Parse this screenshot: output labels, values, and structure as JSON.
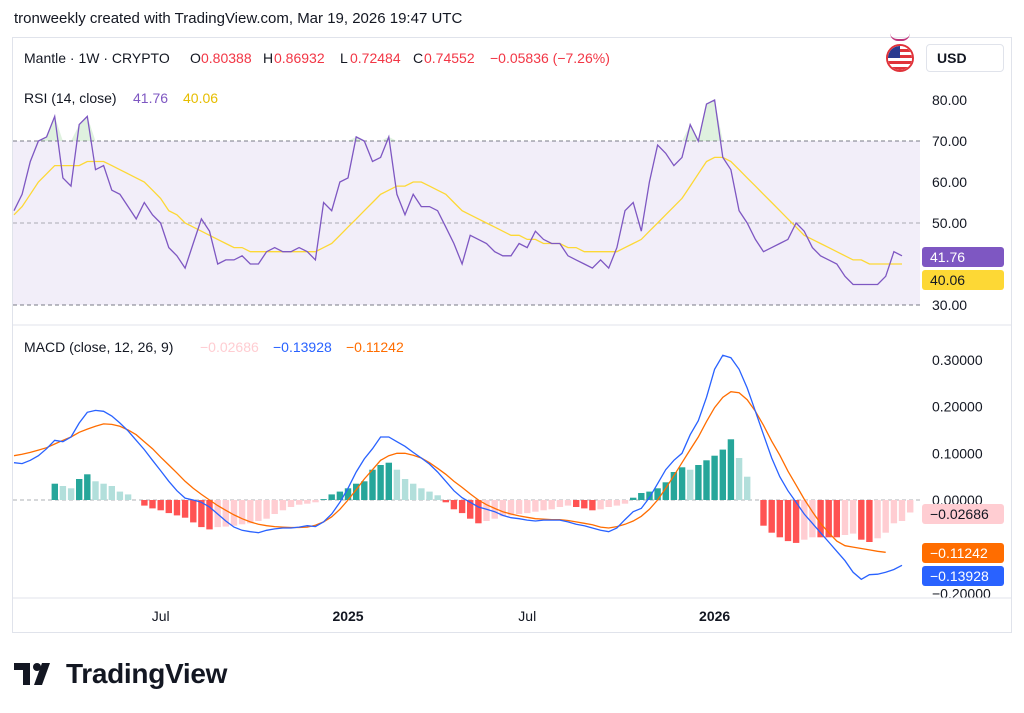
{
  "caption": "tronweekly created with TradingView.com, Mar 19, 2026 19:47 UTC",
  "price_currency": "USD",
  "legend": {
    "symbol": "Mantle · 1W · CRYPTO",
    "o_label": "O",
    "o_value": "0.80388",
    "h_label": "H",
    "h_value": "0.86932",
    "l_label": "L",
    "l_value": "0.72484",
    "c_label": "C",
    "c_value": "0.74552",
    "change": "−0.05836 (−7.26%)"
  },
  "rsi_legend": {
    "title": "RSI (14, close)",
    "rsi": "41.76",
    "ma": "40.06"
  },
  "macd_legend": {
    "title": "MACD (close, 12, 26, 9)",
    "hist": "−0.02686",
    "macd": "−0.13928",
    "signal": "−0.11242"
  },
  "x_axis_labels": [
    "Jul",
    "2025",
    "Jul",
    "2026"
  ],
  "rsi_axis_ticks": [
    "80.00",
    "70.00",
    "60.00",
    "50.00",
    "30.00"
  ],
  "macd_axis_ticks": [
    "0.30000",
    "0.20000",
    "0.10000",
    "0.00000",
    "−0.20000"
  ],
  "badges": {
    "rsi": "41.76",
    "rsi_ma": "40.06",
    "hist": "−0.02686",
    "signal": "−0.11242",
    "macd": "−0.13928"
  },
  "brand": "TradingView",
  "colors": {
    "rsi": "#7e57c2",
    "rsi_ma": "#fdd835",
    "macd": "#2962ff",
    "signal": "#ff6d00",
    "hist_up_strong": "#26a69a",
    "hist_up_weak": "#b2dfdb",
    "hist_down_strong": "#ff5252",
    "hist_down_weak": "#ffcdd2",
    "down_text": "#f23645",
    "rsi_band": "#7e57c2"
  },
  "chart_data": [
    {
      "type": "line",
      "name": "RSI (14, close)",
      "ylim": [
        30,
        80
      ],
      "band": [
        30,
        70
      ],
      "midline": 50,
      "series": [
        {
          "name": "RSI",
          "values": [
            53,
            57,
            65,
            70,
            71,
            76,
            61,
            59,
            74,
            76,
            63,
            64,
            58,
            57,
            54,
            51,
            55,
            52,
            50,
            44,
            42,
            39,
            45,
            51,
            48,
            40,
            41,
            41,
            42,
            40,
            40,
            43,
            44,
            43,
            43,
            44,
            43,
            41,
            55,
            53,
            60,
            61,
            71,
            70,
            65,
            66,
            71,
            57,
            52,
            57,
            54,
            54,
            53,
            49,
            45,
            40,
            47,
            46,
            45,
            43,
            42,
            42,
            45,
            44,
            48,
            46,
            45,
            45,
            42,
            41,
            40,
            39,
            41,
            39,
            44,
            53,
            55,
            48,
            60,
            69,
            67,
            64,
            66,
            74,
            70,
            79,
            80,
            66,
            63,
            53,
            50,
            46,
            43,
            44,
            45,
            46,
            50,
            48,
            44,
            42,
            41,
            40,
            37,
            35,
            35,
            35,
            35,
            37,
            43,
            42
          ]
        },
        {
          "name": "RSI-based MA",
          "values": [
            52,
            54,
            57,
            60,
            62,
            64,
            64,
            64,
            64,
            65,
            65,
            65,
            64,
            63,
            62,
            61,
            60,
            58,
            56,
            53,
            52,
            50,
            49,
            48,
            47,
            46,
            45,
            44,
            44,
            43,
            43,
            43,
            43,
            43,
            43,
            43,
            43,
            43,
            44,
            45,
            47,
            49,
            51,
            53,
            55,
            57,
            58,
            59,
            59,
            60,
            60,
            59,
            58,
            57,
            55,
            53,
            52,
            51,
            50,
            49,
            48,
            47,
            47,
            46,
            46,
            45,
            45,
            45,
            44,
            44,
            43,
            43,
            43,
            43,
            43,
            44,
            45,
            46,
            48,
            50,
            52,
            54,
            56,
            59,
            62,
            65,
            66,
            66,
            65,
            63,
            61,
            59,
            57,
            55,
            53,
            51,
            49,
            47,
            46,
            45,
            44,
            43,
            42,
            41,
            41,
            40,
            40,
            40,
            40,
            40
          ]
        }
      ]
    },
    {
      "type": "line",
      "name": "MACD (close, 12, 26, 9)",
      "ylim": [
        -0.2,
        0.3
      ],
      "series": [
        {
          "name": "MACD",
          "values": [
            0.08,
            0.078,
            0.085,
            0.095,
            0.11,
            0.128,
            0.125,
            0.135,
            0.165,
            0.188,
            0.192,
            0.19,
            0.18,
            0.165,
            0.148,
            0.128,
            0.108,
            0.085,
            0.063,
            0.04,
            0.02,
            0.004,
            0.0,
            -0.005,
            -0.015,
            -0.03,
            -0.045,
            -0.058,
            -0.065,
            -0.068,
            -0.07,
            -0.065,
            -0.062,
            -0.06,
            -0.06,
            -0.058,
            -0.055,
            -0.057,
            -0.047,
            -0.03,
            -0.005,
            0.025,
            0.06,
            0.088,
            0.11,
            0.135,
            0.135,
            0.125,
            0.115,
            0.102,
            0.09,
            0.077,
            0.06,
            0.04,
            0.02,
            0.005,
            -0.005,
            -0.015,
            -0.02,
            -0.025,
            -0.033,
            -0.038,
            -0.04,
            -0.043,
            -0.045,
            -0.043,
            -0.043,
            -0.043,
            -0.047,
            -0.052,
            -0.055,
            -0.06,
            -0.065,
            -0.068,
            -0.06,
            -0.042,
            -0.025,
            -0.018,
            0.005,
            0.035,
            0.065,
            0.085,
            0.1,
            0.14,
            0.17,
            0.22,
            0.28,
            0.31,
            0.305,
            0.28,
            0.24,
            0.19,
            0.14,
            0.09,
            0.05,
            0.02,
            -0.005,
            -0.03,
            -0.05,
            -0.07,
            -0.09,
            -0.11,
            -0.13,
            -0.155,
            -0.17,
            -0.16,
            -0.159,
            -0.155,
            -0.149,
            -0.14
          ]
        },
        {
          "name": "Signal",
          "values": [
            0.095,
            0.098,
            0.102,
            0.107,
            0.112,
            0.12,
            0.128,
            0.135,
            0.145,
            0.152,
            0.158,
            0.163,
            0.162,
            0.158,
            0.15,
            0.14,
            0.125,
            0.11,
            0.092,
            0.075,
            0.058,
            0.04,
            0.025,
            0.012,
            0.0,
            -0.012,
            -0.022,
            -0.032,
            -0.04,
            -0.047,
            -0.052,
            -0.055,
            -0.057,
            -0.058,
            -0.059,
            -0.059,
            -0.058,
            -0.054,
            -0.047,
            -0.036,
            -0.02,
            0.0,
            0.022,
            0.045,
            0.065,
            0.085,
            0.095,
            0.1,
            0.1,
            0.096,
            0.09,
            0.08,
            0.068,
            0.055,
            0.04,
            0.027,
            0.013,
            0.0,
            -0.01,
            -0.018,
            -0.025,
            -0.03,
            -0.034,
            -0.037,
            -0.04,
            -0.041,
            -0.042,
            -0.042,
            -0.044,
            -0.047,
            -0.05,
            -0.053,
            -0.058,
            -0.06,
            -0.057,
            -0.052,
            -0.045,
            -0.035,
            -0.02,
            0.0,
            0.025,
            0.052,
            0.08,
            0.108,
            0.135,
            0.168,
            0.198,
            0.22,
            0.232,
            0.23,
            0.215,
            0.19,
            0.16,
            0.126,
            0.096,
            0.062,
            0.032,
            0.002,
            -0.025,
            -0.05,
            -0.07,
            -0.088,
            -0.098,
            -0.101,
            -0.104,
            -0.107,
            -0.11,
            -0.112
          ]
        },
        {
          "name": "Histogram",
          "values": [
            0,
            0,
            0,
            0,
            0,
            0.035,
            0.03,
            0.025,
            0.045,
            0.055,
            0.04,
            0.035,
            0.03,
            0.018,
            0.012,
            0,
            -0.012,
            -0.018,
            -0.022,
            -0.028,
            -0.033,
            -0.038,
            -0.048,
            -0.058,
            -0.063,
            -0.058,
            -0.057,
            -0.055,
            -0.052,
            -0.05,
            -0.045,
            -0.04,
            -0.03,
            -0.022,
            -0.015,
            -0.01,
            -0.008,
            -0.005,
            0.002,
            0.012,
            0.018,
            0.025,
            0.035,
            0.04,
            0.065,
            0.075,
            0.08,
            0.065,
            0.045,
            0.035,
            0.025,
            0.018,
            0.01,
            -0.005,
            -0.02,
            -0.028,
            -0.04,
            -0.05,
            -0.045,
            -0.04,
            -0.035,
            -0.033,
            -0.03,
            -0.028,
            -0.025,
            -0.022,
            -0.02,
            -0.015,
            -0.012,
            -0.015,
            -0.018,
            -0.022,
            -0.02,
            -0.015,
            -0.012,
            -0.008,
            0.005,
            0.015,
            0.018,
            0.025,
            0.038,
            0.06,
            0.07,
            0.065,
            0.075,
            0.085,
            0.095,
            0.108,
            0.13,
            0.09,
            0.05,
            0,
            -0.055,
            -0.07,
            -0.08,
            -0.088,
            -0.092,
            -0.085,
            -0.08,
            -0.08,
            -0.08,
            -0.08,
            -0.075,
            -0.072,
            -0.085,
            -0.09,
            -0.082,
            -0.07,
            -0.05,
            -0.045,
            -0.02686
          ]
        }
      ]
    }
  ]
}
